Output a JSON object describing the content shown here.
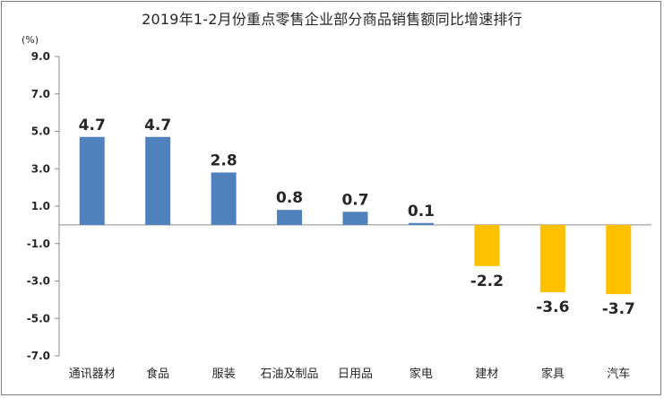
{
  "chart_data": {
    "type": "bar",
    "title": "2019年1-2月份重点零售企业部分商品销售额同比增速排行",
    "ylabel": "(%)",
    "xlabel": "",
    "ylim": [
      -7.0,
      9.0
    ],
    "yticks": [
      "9.0",
      "7.0",
      "5.0",
      "3.0",
      "1.0",
      "-1.0",
      "-3.0",
      "-5.0",
      "-7.0"
    ],
    "categories": [
      "通讯器材",
      "食品",
      "服装",
      "石油及制品",
      "日用品",
      "家电",
      "建材",
      "家具",
      "汽车"
    ],
    "values": [
      4.7,
      4.7,
      2.8,
      0.8,
      0.7,
      0.1,
      -2.2,
      -3.6,
      -3.7
    ],
    "data_labels": [
      "4.7",
      "4.7",
      "2.8",
      "0.8",
      "0.7",
      "0.1",
      "-2.2",
      "-3.6",
      "-3.7"
    ],
    "grid": false,
    "legend": "none",
    "colors": {
      "positive": "#4f81bd",
      "negative": "#ffc000"
    }
  }
}
